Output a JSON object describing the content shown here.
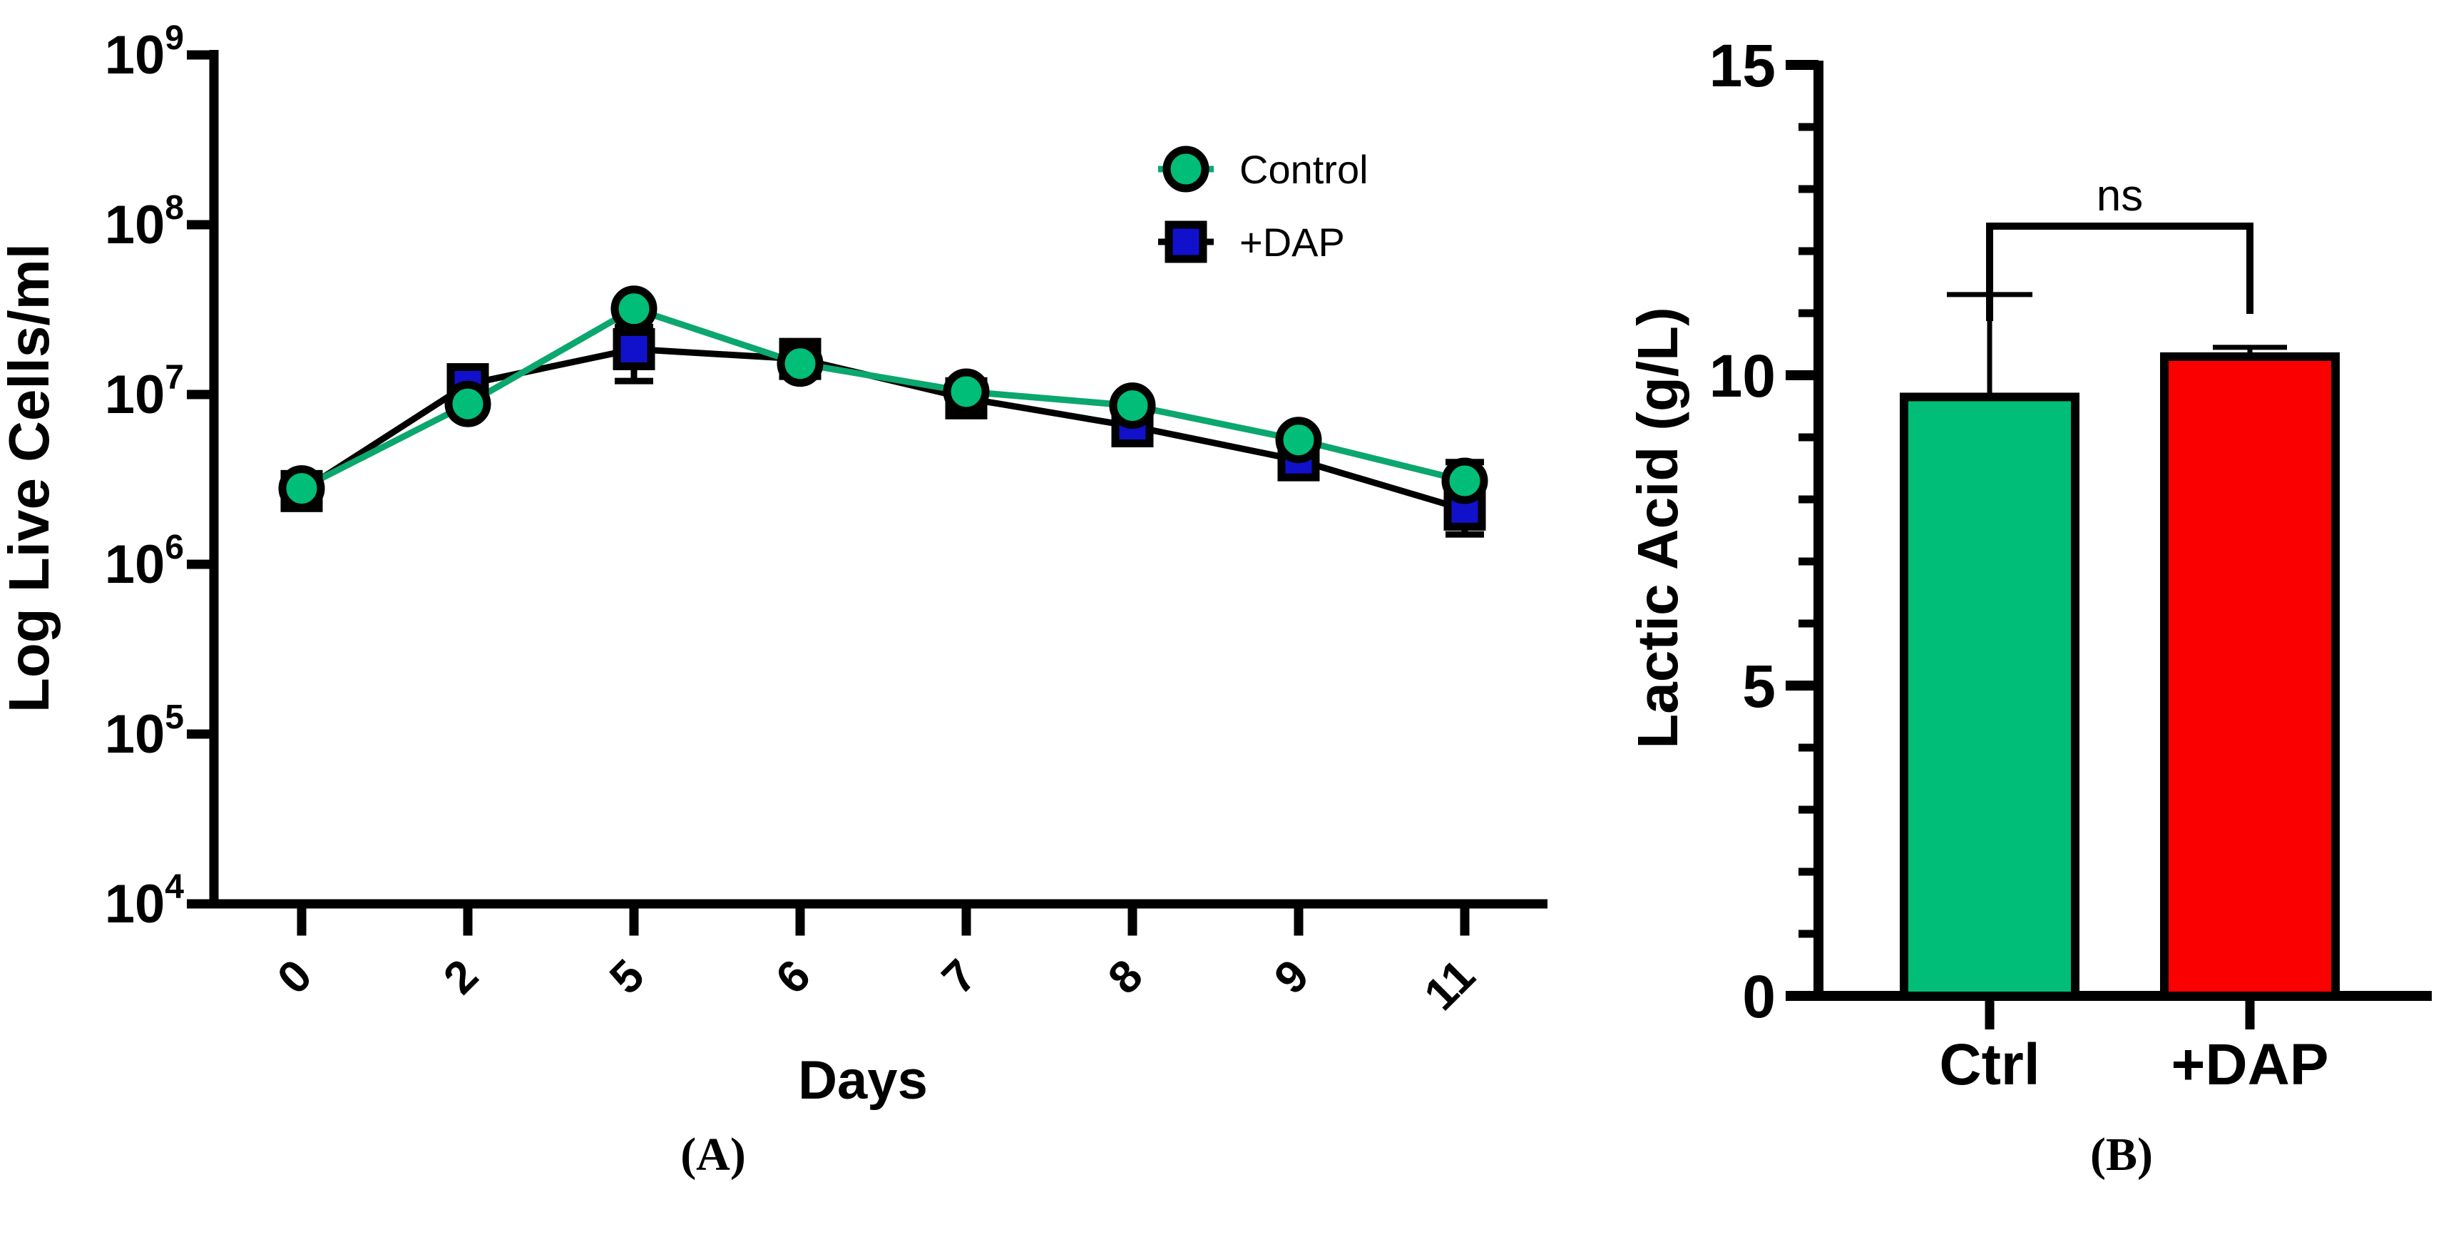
{
  "figure": {
    "background": "#ffffff",
    "panel_a_label": "(A)",
    "panel_b_label": "(B)"
  },
  "chart_data": [
    {
      "id": "A",
      "type": "line",
      "title": "",
      "xlabel": "Days",
      "ylabel": "Log Live Cells/ml",
      "panel_label": "(A)",
      "x_categories": [
        "0",
        "2",
        "5",
        "6",
        "7",
        "8",
        "9",
        "11"
      ],
      "y_axis": {
        "scale": "log10",
        "base_label": "10",
        "tick_exponents": [
          9,
          8,
          7,
          6,
          5,
          4
        ],
        "ylim": [
          10000,
          1000000000
        ]
      },
      "legend_position": "top-right-inside",
      "grid": false,
      "series": [
        {
          "name": "+DAP",
          "marker": "square",
          "marker_fill": "#1111CB",
          "marker_stroke": "#000000",
          "line_color": "#000000",
          "values": [
            2700000,
            11500000,
            18500000,
            16200000,
            9500000,
            6500000,
            4100000,
            2100000
          ],
          "errors": [
            0,
            0,
            6500000,
            0,
            0,
            0,
            0,
            600000
          ]
        },
        {
          "name": "Control",
          "marker": "circle",
          "marker_fill": "#00BE78",
          "marker_stroke": "#000000",
          "line_color": "#0BA76E",
          "values": [
            2800000,
            8800000,
            32000000,
            15200000,
            10400000,
            8600000,
            5400000,
            3100000
          ],
          "errors": [
            0,
            0,
            0,
            0,
            0,
            0,
            0,
            900000
          ]
        }
      ]
    },
    {
      "id": "B",
      "type": "bar",
      "title": "",
      "xlabel": "",
      "ylabel": "Lactic Acid (g/L)",
      "panel_label": "(B)",
      "categories": [
        "Ctrl",
        "+DAP"
      ],
      "values": [
        9.65,
        10.3
      ],
      "errors": [
        1.65,
        0.15
      ],
      "bar_fills": [
        "#00BE78",
        "#FB0000"
      ],
      "bar_stroke": "#000000",
      "ylim": [
        0,
        15
      ],
      "major_ticks": [
        0,
        5,
        10,
        15
      ],
      "minor_tick_step": 1,
      "grid": false,
      "significance": {
        "label": "ns",
        "groups": [
          "Ctrl",
          "+DAP"
        ]
      }
    }
  ]
}
